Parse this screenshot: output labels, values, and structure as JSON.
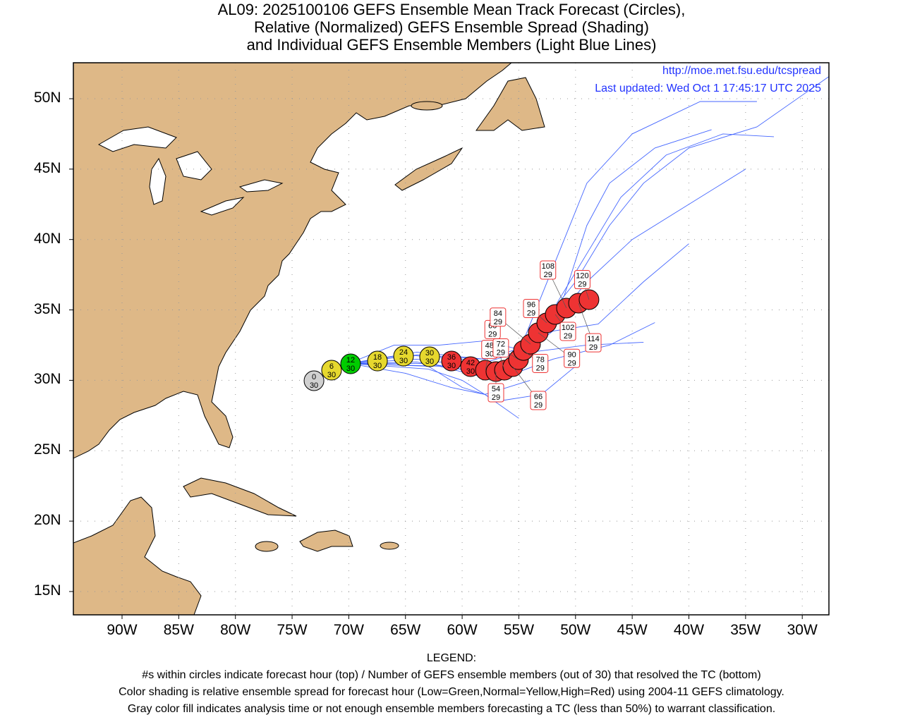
{
  "title": {
    "line1": "AL09: 2025100106 GEFS Ensemble Mean Track Forecast (Circles),",
    "line2": "Relative (Normalized) GEFS Ensemble Spread (Shading)",
    "line3": "and Individual GEFS Ensemble Members (Light Blue Lines)"
  },
  "info": {
    "url": "http://moe.met.fsu.edu/tcspread",
    "updated": "Last updated: Wed Oct 1 17:45:17 UTC 2025"
  },
  "axes": {
    "lon_labels": [
      "90W",
      "85W",
      "80W",
      "75W",
      "70W",
      "65W",
      "60W",
      "55W",
      "50W",
      "45W",
      "40W",
      "35W",
      "30W"
    ],
    "lon_values": [
      -90,
      -85,
      -80,
      -75,
      -70,
      -65,
      -60,
      -55,
      -50,
      -45,
      -40,
      -35,
      -30
    ],
    "lat_labels": [
      "50N",
      "45N",
      "40N",
      "35N",
      "30N",
      "25N",
      "20N",
      "15N"
    ],
    "lat_values": [
      50,
      45,
      40,
      35,
      30,
      25,
      20,
      15
    ],
    "lon_range": [
      -94.3,
      -27.6
    ],
    "lat_range": [
      13.35,
      52.55
    ]
  },
  "colors": {
    "gray": "#d0d0d0",
    "green": "#00cc00",
    "yellow": "#e6d82e",
    "red": "#ee3333",
    "land": "#deb887",
    "member": "#4466ff"
  },
  "track": [
    {
      "hour": "0",
      "members": "30",
      "lon": -73.07,
      "lat": 29.97,
      "spread": "gray"
    },
    {
      "hour": "6",
      "members": "30",
      "lon": -71.52,
      "lat": 30.72,
      "spread": "yellow"
    },
    {
      "hour": "12",
      "members": "30",
      "lon": -69.84,
      "lat": 31.17,
      "spread": "green"
    },
    {
      "hour": "18",
      "members": "30",
      "lon": -67.47,
      "lat": 31.37,
      "spread": "yellow"
    },
    {
      "hour": "24",
      "members": "30",
      "lon": -65.17,
      "lat": 31.72,
      "spread": "yellow"
    },
    {
      "hour": "30",
      "members": "30",
      "lon": -62.87,
      "lat": 31.67,
      "spread": "yellow"
    },
    {
      "hour": "36",
      "members": "30",
      "lon": -60.94,
      "lat": 31.37,
      "spread": "red"
    },
    {
      "hour": "42",
      "members": "30",
      "lon": -59.26,
      "lat": 30.97,
      "spread": "red"
    },
    {
      "hour": "48",
      "members": "30",
      "lon": -57.95,
      "lat": 30.72,
      "spread": "red"
    },
    {
      "hour": "54",
      "members": "29",
      "lon": -57.02,
      "lat": 30.62,
      "spread": "red"
    },
    {
      "hour": "60",
      "members": "29",
      "lon": -56.27,
      "lat": 30.72,
      "spread": "red"
    },
    {
      "hour": "66",
      "members": "29",
      "lon": -55.53,
      "lat": 30.97,
      "spread": "red"
    },
    {
      "hour": "72",
      "members": "29",
      "lon": -55.03,
      "lat": 31.47,
      "spread": "red"
    },
    {
      "hour": "78",
      "members": "29",
      "lon": -54.59,
      "lat": 32.12,
      "spread": "red"
    },
    {
      "hour": "84",
      "members": "29",
      "lon": -53.97,
      "lat": 32.57,
      "spread": "red"
    },
    {
      "hour": "90",
      "members": "29",
      "lon": -53.29,
      "lat": 33.38,
      "spread": "red"
    },
    {
      "hour": "96",
      "members": "29",
      "lon": -52.54,
      "lat": 34.08,
      "spread": "red"
    },
    {
      "hour": "102",
      "members": "29",
      "lon": -51.79,
      "lat": 34.68,
      "spread": "red"
    },
    {
      "hour": "108",
      "members": "29",
      "lon": -50.8,
      "lat": 35.13,
      "spread": "red"
    },
    {
      "hour": "114",
      "members": "29",
      "lon": -49.74,
      "lat": 35.48,
      "spread": "red"
    },
    {
      "hour": "120",
      "members": "29",
      "lon": -48.81,
      "lat": 35.73,
      "spread": "red"
    }
  ],
  "member_tracks": [
    [
      [
        -73,
        30
      ],
      [
        -70,
        31.2
      ],
      [
        -65,
        31.8
      ],
      [
        -60,
        31.5
      ],
      [
        -57,
        30.8
      ],
      [
        -55,
        31.5
      ],
      [
        -53,
        34
      ],
      [
        -50,
        37
      ],
      [
        -47,
        41
      ],
      [
        -44,
        44
      ],
      [
        -40,
        46.5
      ],
      [
        -34,
        48
      ],
      [
        -26,
        52.5
      ]
    ],
    [
      [
        -73,
        30
      ],
      [
        -70,
        31.2
      ],
      [
        -64,
        31.5
      ],
      [
        -59,
        31
      ],
      [
        -55,
        32
      ],
      [
        -52,
        35
      ],
      [
        -49,
        39
      ],
      [
        -46,
        43
      ],
      [
        -42,
        46
      ],
      [
        -37,
        47.5
      ],
      [
        -32.5,
        47.3
      ]
    ],
    [
      [
        -73,
        30
      ],
      [
        -70,
        31.2
      ],
      [
        -64,
        31.3
      ],
      [
        -58,
        30.5
      ],
      [
        -55,
        31
      ],
      [
        -52,
        34
      ],
      [
        -49,
        37
      ],
      [
        -45,
        40
      ],
      [
        -41,
        42
      ],
      [
        -37,
        44
      ],
      [
        -35,
        45
      ]
    ],
    [
      [
        -73,
        30
      ],
      [
        -70,
        31.2
      ],
      [
        -63,
        31.2
      ],
      [
        -58,
        30.5
      ],
      [
        -56,
        31
      ],
      [
        -52,
        33.5
      ],
      [
        -48,
        34
      ],
      [
        -44,
        37
      ],
      [
        -40,
        39.7
      ]
    ],
    [
      [
        -73,
        30
      ],
      [
        -70,
        31.2
      ],
      [
        -62,
        31
      ],
      [
        -57,
        30
      ],
      [
        -52,
        31.5
      ],
      [
        -47,
        32.5
      ],
      [
        -43,
        34.1
      ]
    ],
    [
      [
        -73,
        30
      ],
      [
        -70,
        31.2
      ],
      [
        -63,
        31
      ],
      [
        -60,
        29.5
      ],
      [
        -58,
        29
      ],
      [
        -55,
        27.3
      ]
    ],
    [
      [
        -73,
        30
      ],
      [
        -70,
        31.2
      ],
      [
        -63,
        30.8
      ],
      [
        -60,
        30
      ],
      [
        -57,
        28.5
      ],
      [
        -53,
        29
      ],
      [
        -50,
        31
      ]
    ],
    [
      [
        -73,
        30
      ],
      [
        -70,
        31.2
      ],
      [
        -65,
        30.5
      ],
      [
        -61,
        29.5
      ],
      [
        -58,
        29
      ],
      [
        -54,
        30
      ]
    ],
    [
      [
        -73,
        30
      ],
      [
        -70,
        31.2
      ],
      [
        -66,
        32.5
      ],
      [
        -62,
        32.5
      ],
      [
        -58,
        32.8
      ],
      [
        -54,
        32
      ],
      [
        -49,
        32.5
      ],
      [
        -44,
        32.7
      ]
    ],
    [
      [
        -73,
        30
      ],
      [
        -70,
        31.2
      ],
      [
        -64,
        31.8
      ],
      [
        -58,
        31.5
      ],
      [
        -55,
        32
      ],
      [
        -53,
        36
      ],
      [
        -51,
        40
      ],
      [
        -49,
        44
      ],
      [
        -45,
        47.5
      ],
      [
        -39,
        49.8
      ],
      [
        -34,
        49.8
      ]
    ],
    [
      [
        -73,
        30
      ],
      [
        -70,
        31.2
      ],
      [
        -64,
        32
      ],
      [
        -58,
        31.5
      ],
      [
        -54,
        32.5
      ],
      [
        -51,
        36
      ],
      [
        -49,
        41
      ],
      [
        -47,
        44
      ],
      [
        -43,
        46.5
      ],
      [
        -38,
        47.8
      ]
    ]
  ],
  "legend": {
    "heading": "LEGEND:",
    "line1": "#s within circles indicate forecast hour (top) / Number of GEFS ensemble members (out of 30) that resolved the TC (bottom)",
    "line2": "Color shading is relative ensemble spread for forecast hour (Low=Green,Normal=Yellow,High=Red) using 2004-11 GEFS climatology.",
    "line3": "Gray color fill indicates analysis time or not enough ensemble members forecasting a TC (less than 50%) to warrant classification."
  }
}
